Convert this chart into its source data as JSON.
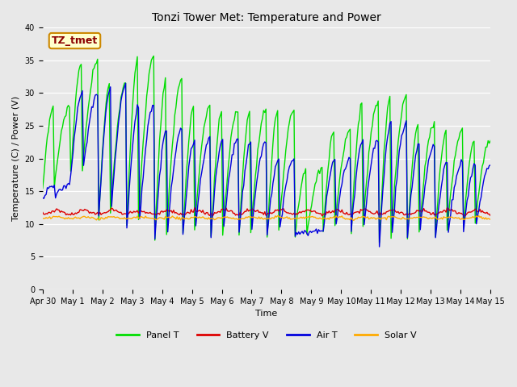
{
  "title": "Tonzi Tower Met: Temperature and Power",
  "xlabel": "Time",
  "ylabel": "Temperature (C) / Power (V)",
  "annotation": "TZ_tmet",
  "ylim": [
    0,
    40
  ],
  "yticks": [
    0,
    5,
    10,
    15,
    20,
    25,
    30,
    35,
    40
  ],
  "plot_bg": "#e8e8e8",
  "fig_bg": "#e8e8e8",
  "line_colors": {
    "Panel T": "#00dd00",
    "Battery V": "#dd0000",
    "Air T": "#0000dd",
    "Solar V": "#ffaa00"
  },
  "x_tick_labels": [
    "Apr 30",
    "May 1",
    "May 2",
    "May 3",
    "May 4",
    "May 5",
    "May 6",
    "May 7",
    "May 8",
    "May 9",
    "May 10",
    "May 11",
    "May 12",
    "May 13",
    "May 14",
    "May 15"
  ],
  "n_days": 16,
  "pts_per_day": 24,
  "panel_peaks": [
    28,
    35,
    31.5,
    35.5,
    32,
    28,
    27.5,
    27.5,
    27.5,
    18.5,
    24.5,
    28.5,
    29.5,
    25.5,
    24.5,
    23
  ],
  "panel_troughs": [
    15,
    17.5,
    11,
    9.5,
    7.5,
    8.5,
    7.5,
    8.0,
    8.0,
    8.0,
    9.0,
    9.0,
    7.0,
    8.0,
    8.5,
    9.5
  ],
  "air_peaks": [
    16,
    30,
    31,
    28,
    24.5,
    23,
    23,
    22.5,
    20,
    9.0,
    20,
    23,
    25.5,
    22,
    19.5,
    19
  ],
  "air_troughs": [
    14,
    17.5,
    11,
    9.5,
    7.5,
    8.5,
    8.5,
    8.5,
    8.5,
    8.5,
    9.0,
    9.0,
    7.0,
    8.0,
    8.0,
    9.0
  ],
  "battery_base": 11.5,
  "solar_base": 10.8,
  "linewidth": 1.0,
  "title_fontsize": 10,
  "axis_fontsize": 8,
  "tick_fontsize": 7,
  "legend_fontsize": 8
}
